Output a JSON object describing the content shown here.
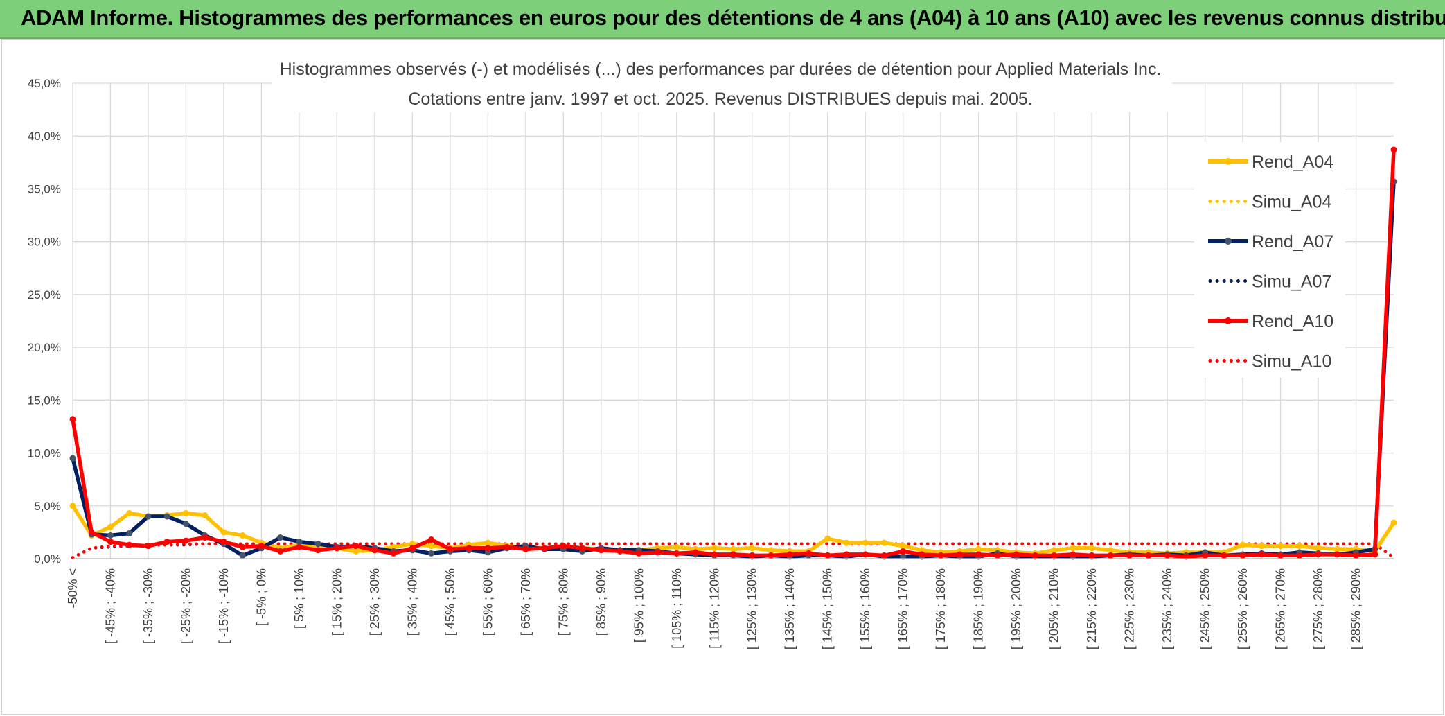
{
  "banner": {
    "title": "ADAM Informe. Histogrammes des performances en euros pour des détentions de 4 ans (A04) à 10 ans (A10) avec les revenus connus distribués"
  },
  "colors": {
    "banner_bg": "#7dcf7a",
    "A04": "#ffc000",
    "A07": "#002060",
    "A07_marker": "#44546a",
    "A10": "#ff0000",
    "grid": "#d9d9d9",
    "text": "#404040"
  },
  "chart_data": {
    "type": "line",
    "title_line1": "Histogrammes observés (-) et modélisés (...) des performances par durées de détention pour Applied Materials Inc.",
    "title_line2": "Cotations entre janv. 1997 et oct. 2025. Revenus DISTRIBUES depuis mai. 2005.",
    "y_ticks": [
      "0,0%",
      "5,0%",
      "10,0%",
      "15,0%",
      "20,0%",
      "25,0%",
      "30,0%",
      "35,0%",
      "40,0%",
      "45,0%"
    ],
    "ylim": [
      0,
      45
    ],
    "x_tick_labels": [
      "-50% <",
      "[ -45% ; -40%",
      "[ -35% ; -30%",
      "[ -25% ; -20%",
      "[ -15% ; -10%",
      "[ -5% ; 0%",
      "[ 5% ; 10%",
      "[ 15% ; 20%",
      "[ 25% ; 30%",
      "[ 35% ; 40%",
      "[ 45% ; 50%",
      "[ 55% ; 60%",
      "[ 65% ; 70%",
      "[ 75% ; 80%",
      "[ 85% ; 90%",
      "[ 95% ; 100%",
      "[ 105% ; 110%",
      "[ 115% ; 120%",
      "[ 125% ; 130%",
      "[ 135% ; 140%",
      "[ 145% ; 150%",
      "[ 155% ; 160%",
      "[ 165% ; 170%",
      "[ 175% ; 180%",
      "[ 185% ; 190%",
      "[ 195% ; 200%",
      "[ 205% ; 210%",
      "[ 215% ; 220%",
      "[ 225% ; 230%",
      "[ 235% ; 240%",
      "[ 245% ; 250%",
      "[ 255% ; 260%",
      "[ 265% ; 270%",
      "[ 275% ; 280%",
      "[ 285% ; 290%"
    ],
    "n_bins": 71,
    "series": [
      {
        "name": "Rend_A04",
        "style": "solid",
        "color": "#ffc000",
        "values": [
          5.0,
          2.2,
          3.0,
          4.3,
          4.0,
          4.1,
          4.3,
          4.1,
          2.5,
          2.2,
          1.5,
          1.0,
          1.3,
          1.2,
          1.0,
          0.7,
          0.8,
          1.1,
          1.4,
          1.2,
          1.0,
          1.3,
          1.5,
          1.2,
          1.0,
          1.0,
          1.1,
          1.0,
          0.9,
          0.8,
          0.8,
          1.0,
          1.1,
          0.9,
          1.0,
          0.9,
          1.0,
          0.8,
          0.7,
          0.7,
          1.9,
          1.5,
          1.5,
          1.5,
          1.2,
          0.8,
          0.6,
          0.7,
          0.9,
          0.8,
          0.6,
          0.5,
          0.8,
          1.0,
          1.0,
          0.8,
          0.6,
          0.6,
          0.5,
          0.6,
          0.6,
          0.6,
          1.3,
          1.2,
          1.2,
          1.2,
          1.0,
          0.9,
          0.9,
          0.7,
          3.4
        ]
      },
      {
        "name": "Simu_A04",
        "style": "dotted",
        "color": "#ffc000",
        "values": [
          0.1,
          1.0,
          1.2,
          1.3,
          1.3,
          1.3,
          1.4,
          1.4,
          1.4,
          1.4,
          1.4,
          1.4,
          1.4,
          1.4,
          1.4,
          1.4,
          1.4,
          1.4,
          1.4,
          1.4,
          1.4,
          1.4,
          1.4,
          1.4,
          1.4,
          1.4,
          1.4,
          1.4,
          1.4,
          1.4,
          1.4,
          1.4,
          1.4,
          1.4,
          1.4,
          1.4,
          1.4,
          1.4,
          1.4,
          1.4,
          1.4,
          1.4,
          1.4,
          1.4,
          1.4,
          1.4,
          1.4,
          1.4,
          1.4,
          1.4,
          1.4,
          1.4,
          1.4,
          1.4,
          1.4,
          1.4,
          1.4,
          1.4,
          1.4,
          1.4,
          1.4,
          1.4,
          1.4,
          1.4,
          1.4,
          1.4,
          1.4,
          1.4,
          1.4,
          1.4,
          0.1
        ]
      },
      {
        "name": "Rend_A07",
        "style": "solid",
        "color": "#002060",
        "marker": "#44546a",
        "values": [
          9.5,
          2.3,
          2.2,
          2.4,
          4.0,
          4.0,
          3.3,
          2.2,
          1.4,
          0.3,
          1.0,
          2.0,
          1.6,
          1.4,
          1.1,
          1.2,
          1.0,
          0.7,
          0.8,
          0.5,
          0.7,
          0.8,
          0.6,
          1.0,
          1.2,
          0.9,
          0.9,
          0.7,
          1.0,
          0.8,
          0.8,
          0.7,
          0.5,
          0.4,
          0.3,
          0.3,
          0.2,
          0.3,
          0.2,
          0.3,
          0.3,
          0.2,
          0.4,
          0.2,
          0.2,
          0.2,
          0.3,
          0.2,
          0.2,
          0.5,
          0.2,
          0.2,
          0.2,
          0.2,
          0.2,
          0.3,
          0.4,
          0.3,
          0.4,
          0.3,
          0.6,
          0.3,
          0.4,
          0.5,
          0.4,
          0.6,
          0.5,
          0.4,
          0.6,
          0.9,
          35.7
        ]
      },
      {
        "name": "Simu_A07",
        "style": "dotted",
        "color": "#002060",
        "values": [
          0.1,
          1.0,
          1.1,
          1.2,
          1.3,
          1.3,
          1.3,
          1.4,
          1.4,
          1.4,
          1.4,
          1.4,
          1.4,
          1.4,
          1.4,
          1.4,
          1.4,
          1.4,
          1.4,
          1.4,
          1.4,
          1.4,
          1.4,
          1.4,
          1.4,
          1.4,
          1.4,
          1.4,
          1.4,
          1.4,
          1.4,
          1.4,
          1.4,
          1.4,
          1.4,
          1.4,
          1.4,
          1.4,
          1.4,
          1.4,
          1.4,
          1.4,
          1.4,
          1.4,
          1.4,
          1.4,
          1.4,
          1.4,
          1.4,
          1.4,
          1.4,
          1.4,
          1.4,
          1.4,
          1.4,
          1.4,
          1.4,
          1.4,
          1.4,
          1.4,
          1.4,
          1.4,
          1.4,
          1.4,
          1.4,
          1.4,
          1.4,
          1.4,
          1.4,
          1.4,
          0.1
        ]
      },
      {
        "name": "Rend_A10",
        "style": "solid",
        "color": "#ff0000",
        "values": [
          13.2,
          2.5,
          1.6,
          1.3,
          1.2,
          1.6,
          1.7,
          2.0,
          1.6,
          1.1,
          1.2,
          0.7,
          1.1,
          0.8,
          1.0,
          1.2,
          0.8,
          0.5,
          1.0,
          1.8,
          0.9,
          1.0,
          1.0,
          1.1,
          0.9,
          1.0,
          1.2,
          1.0,
          0.8,
          0.7,
          0.5,
          0.6,
          0.5,
          0.6,
          0.4,
          0.4,
          0.3,
          0.3,
          0.4,
          0.5,
          0.3,
          0.4,
          0.4,
          0.3,
          0.7,
          0.4,
          0.3,
          0.4,
          0.4,
          0.3,
          0.4,
          0.3,
          0.3,
          0.4,
          0.3,
          0.3,
          0.3,
          0.3,
          0.3,
          0.2,
          0.3,
          0.3,
          0.3,
          0.4,
          0.3,
          0.3,
          0.4,
          0.4,
          0.3,
          0.4,
          38.7
        ]
      },
      {
        "name": "Simu_A10",
        "style": "dotted",
        "color": "#ff0000",
        "values": [
          0.1,
          1.0,
          1.2,
          1.2,
          1.3,
          1.3,
          1.4,
          1.4,
          1.4,
          1.4,
          1.4,
          1.4,
          1.4,
          1.4,
          1.4,
          1.4,
          1.4,
          1.4,
          1.4,
          1.4,
          1.4,
          1.4,
          1.4,
          1.4,
          1.4,
          1.4,
          1.4,
          1.4,
          1.4,
          1.4,
          1.4,
          1.4,
          1.4,
          1.4,
          1.4,
          1.4,
          1.4,
          1.4,
          1.4,
          1.4,
          1.4,
          1.4,
          1.4,
          1.4,
          1.4,
          1.4,
          1.4,
          1.4,
          1.4,
          1.4,
          1.4,
          1.4,
          1.4,
          1.4,
          1.4,
          1.4,
          1.4,
          1.4,
          1.4,
          1.4,
          1.4,
          1.4,
          1.4,
          1.4,
          1.4,
          1.4,
          1.4,
          1.4,
          1.4,
          1.4,
          0.1
        ]
      }
    ],
    "legend": [
      {
        "label": "Rend_A04",
        "series": "Rend_A04"
      },
      {
        "label": "Simu_A04",
        "series": "Simu_A04"
      },
      {
        "label": "Rend_A07",
        "series": "Rend_A07"
      },
      {
        "label": "Simu_A07",
        "series": "Simu_A07"
      },
      {
        "label": "Rend_A10",
        "series": "Rend_A10"
      },
      {
        "label": "Simu_A10",
        "series": "Simu_A10"
      }
    ],
    "legend_position": "top-right",
    "grid": true
  }
}
